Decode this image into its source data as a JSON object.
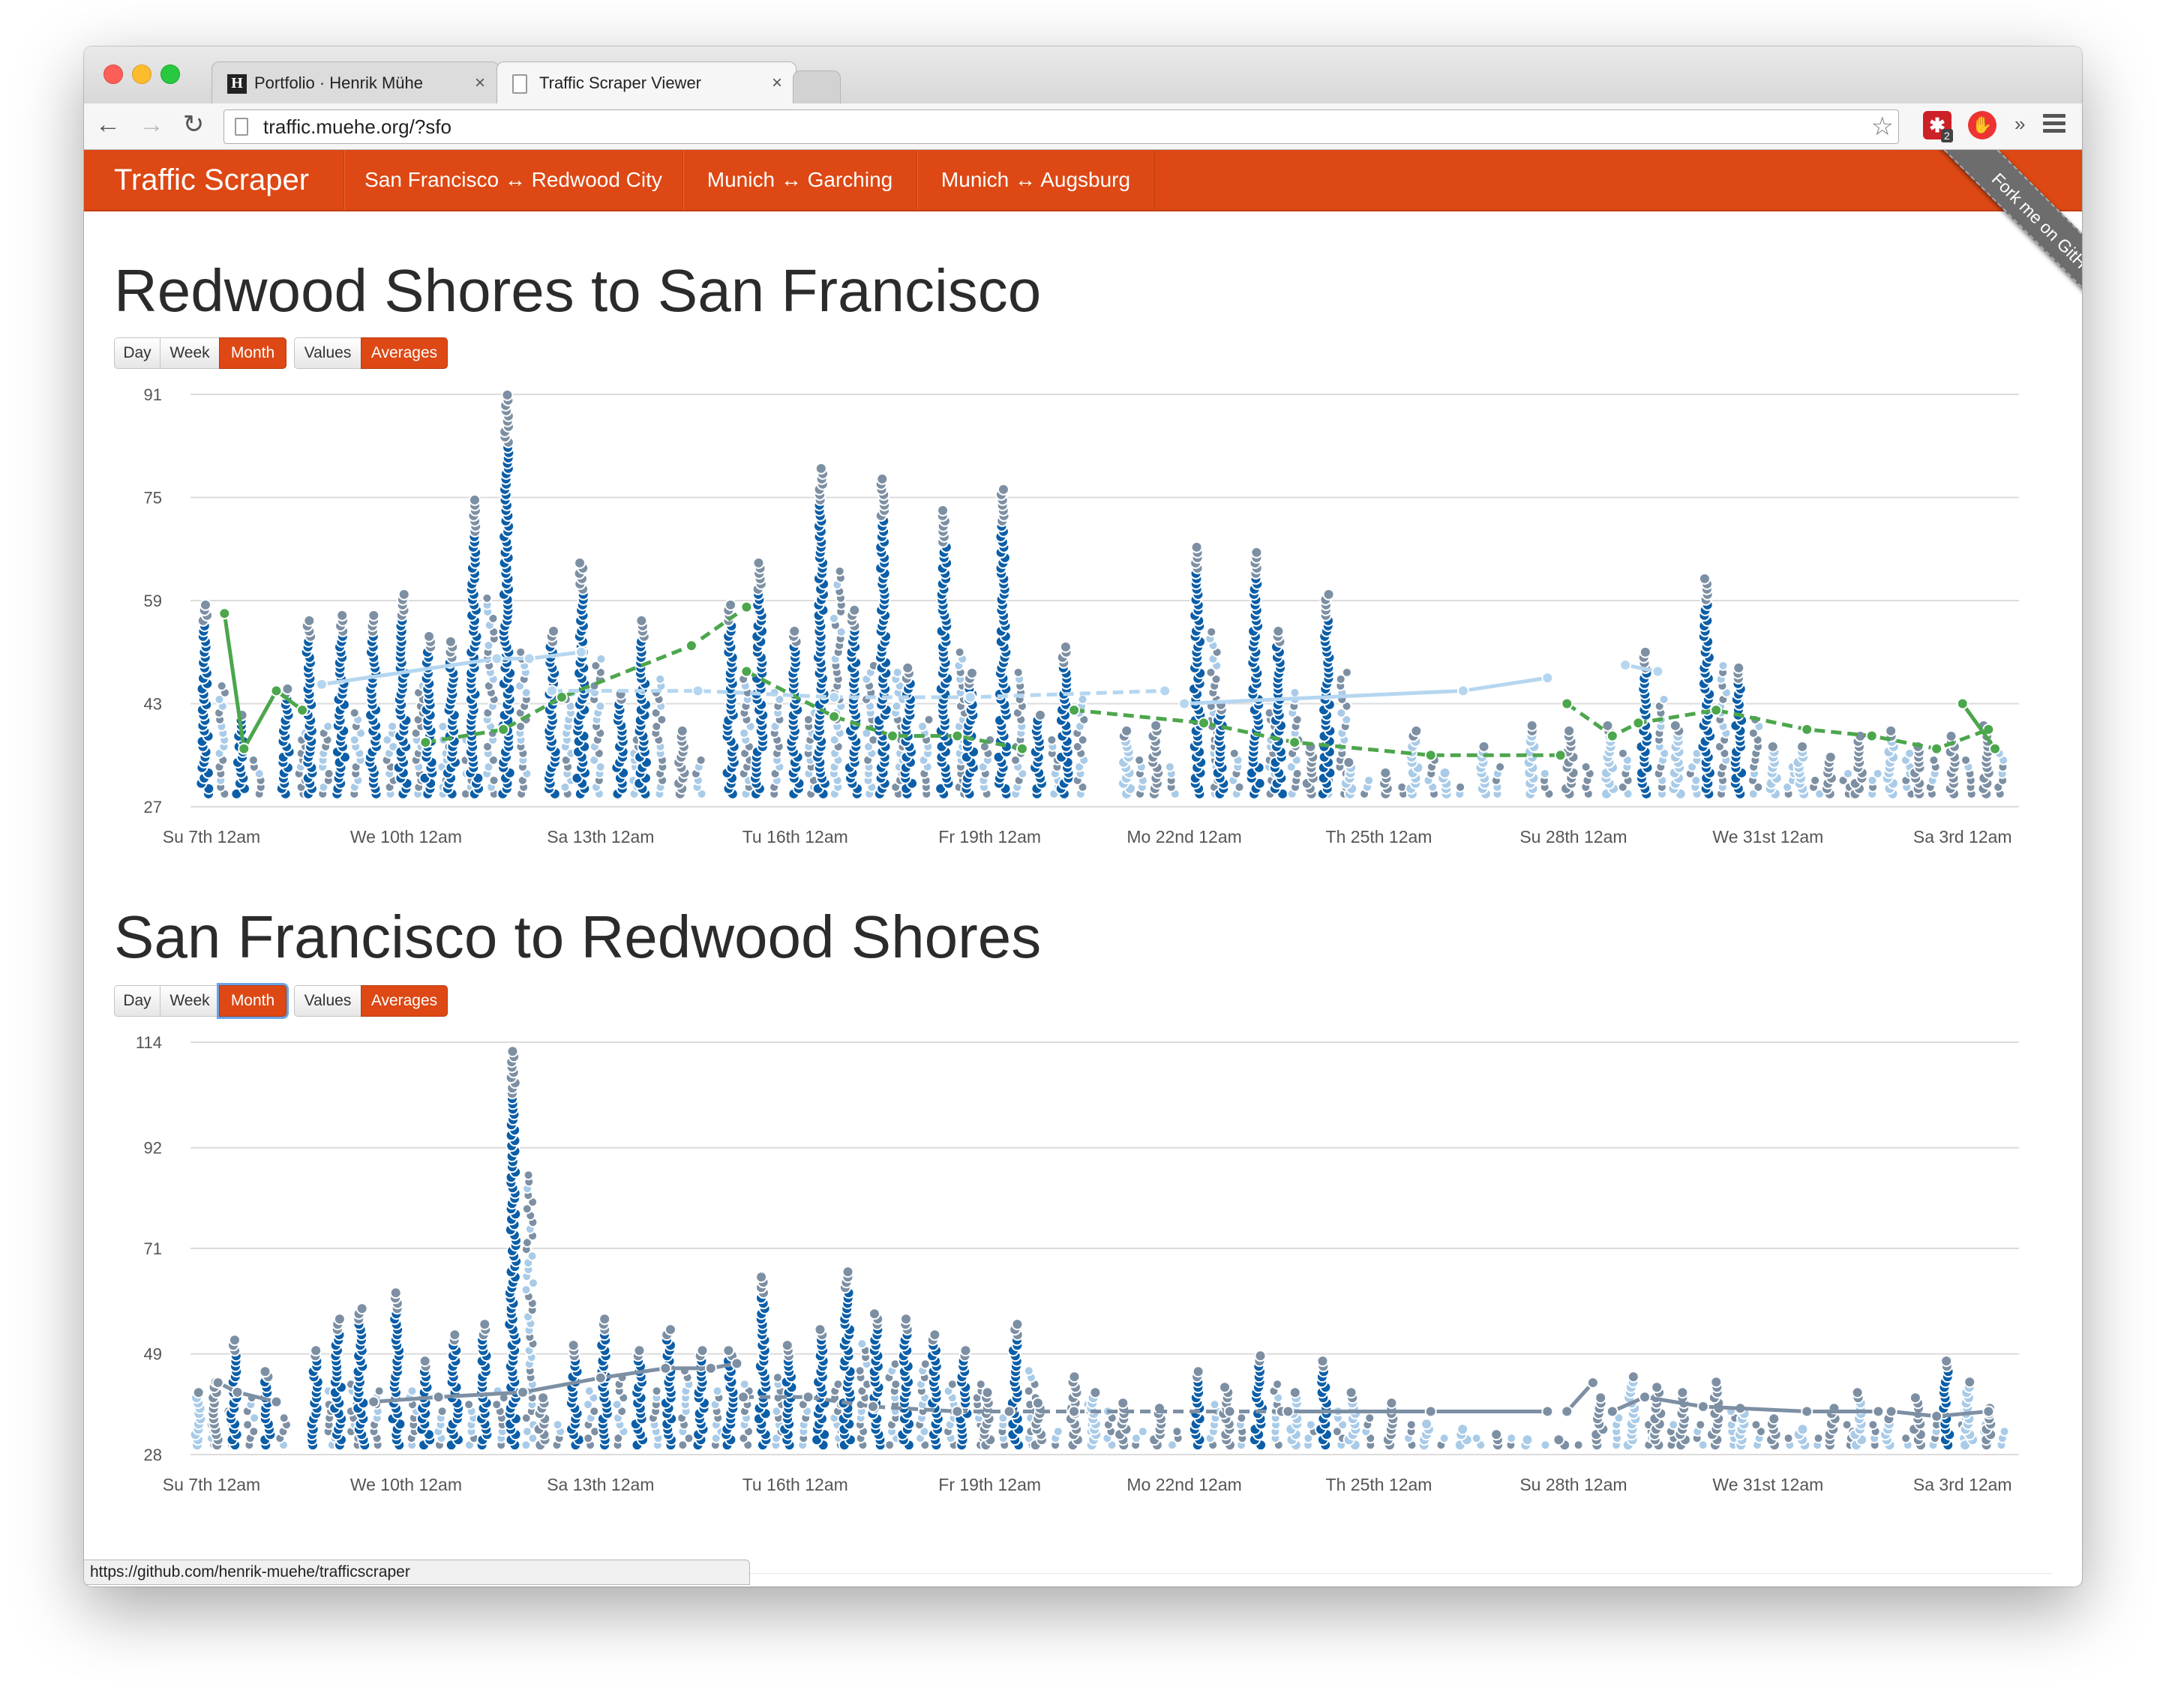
{
  "browser": {
    "tabs": [
      {
        "title": "Portfolio · Henrik Mühe",
        "favicon": "H",
        "close": "×"
      },
      {
        "title": "Traffic Scraper Viewer",
        "close": "×"
      }
    ],
    "url": "traffic.muehe.org/?sfo",
    "extension_badge": "2",
    "overflow": "»",
    "status_url": "https://github.com/henrik-muehe/trafficscraper"
  },
  "navbar": {
    "brand": "Traffic Scraper",
    "links": [
      "San Francisco ↔ Redwood City",
      "Munich ↔ Garching",
      "Munich ↔ Augsburg"
    ],
    "ribbon": "Fork me on GitHub",
    "accent": "#dd4814"
  },
  "controls": {
    "ranges": [
      "Day",
      "Week",
      "Month"
    ],
    "modes": [
      "Values",
      "Averages"
    ],
    "active_range": "Month",
    "active_mode": "Averages"
  },
  "sections": [
    {
      "title": "Redwood Shores to San Francisco"
    },
    {
      "title": "San Francisco to Redwood Shores"
    }
  ],
  "chart_data": [
    {
      "type": "scatter",
      "title": "Redwood Shores to San Francisco",
      "x_ticks": [
        "Su 7th 12am",
        "We 10th 12am",
        "Sa 13th 12am",
        "Tu 16th 12am",
        "Fr 19th 12am",
        "Mo 22nd 12am",
        "Th 25th 12am",
        "Su 28th 12am",
        "We 31st 12am",
        "Sa 3rd 12am"
      ],
      "y_ticks": [
        27,
        43,
        59,
        75,
        91
      ],
      "ylim": [
        27,
        91
      ],
      "x_range_days": [
        0,
        27.5
      ],
      "colors": {
        "primary": "#0b5ea8",
        "secondary": "#7d8fa3",
        "light": "#a9cbe8",
        "trend": "#4ca64c",
        "trend_light": "#b5d6f0"
      },
      "spikes": [
        {
          "day": -0.1,
          "peak": 59
        },
        {
          "day": 0.45,
          "peak": 42
        },
        {
          "day": 1.15,
          "peak": 46
        },
        {
          "day": 1.5,
          "peak": 56
        },
        {
          "day": 2.0,
          "peak": 57
        },
        {
          "day": 2.5,
          "peak": 57
        },
        {
          "day": 2.95,
          "peak": 60
        },
        {
          "day": 3.35,
          "peak": 54
        },
        {
          "day": 3.7,
          "peak": 53
        },
        {
          "day": 4.05,
          "peak": 75
        },
        {
          "day": 4.55,
          "peak": 91
        },
        {
          "day": 5.25,
          "peak": 55
        },
        {
          "day": 5.7,
          "peak": 65
        },
        {
          "day": 6.3,
          "peak": 45
        },
        {
          "day": 6.65,
          "peak": 56
        },
        {
          "day": 7.25,
          "peak": 39
        },
        {
          "day": 8.0,
          "peak": 59
        },
        {
          "day": 8.45,
          "peak": 65
        },
        {
          "day": 9.0,
          "peak": 55
        },
        {
          "day": 9.4,
          "peak": 80
        },
        {
          "day": 9.9,
          "peak": 58
        },
        {
          "day": 10.35,
          "peak": 78
        },
        {
          "day": 10.75,
          "peak": 49
        },
        {
          "day": 11.3,
          "peak": 73
        },
        {
          "day": 11.7,
          "peak": 48
        },
        {
          "day": 12.2,
          "peak": 77
        },
        {
          "day": 12.75,
          "peak": 42
        },
        {
          "day": 13.15,
          "peak": 52
        },
        {
          "day": 14.1,
          "peak": 39
        },
        {
          "day": 14.55,
          "peak": 40
        },
        {
          "day": 15.2,
          "peak": 68
        },
        {
          "day": 15.55,
          "peak": 43
        },
        {
          "day": 16.1,
          "peak": 67
        },
        {
          "day": 16.45,
          "peak": 55
        },
        {
          "day": 16.95,
          "peak": 37
        },
        {
          "day": 17.2,
          "peak": 60
        },
        {
          "day": 17.55,
          "peak": 34
        },
        {
          "day": 18.1,
          "peak": 33
        },
        {
          "day": 18.55,
          "peak": 39
        },
        {
          "day": 19.0,
          "peak": 33
        },
        {
          "day": 19.6,
          "peak": 37
        },
        {
          "day": 20.35,
          "peak": 40
        },
        {
          "day": 20.95,
          "peak": 39
        },
        {
          "day": 21.55,
          "peak": 40
        },
        {
          "day": 22.1,
          "peak": 51
        },
        {
          "day": 22.6,
          "peak": 40
        },
        {
          "day": 23.05,
          "peak": 63
        },
        {
          "day": 23.55,
          "peak": 49
        },
        {
          "day": 24.1,
          "peak": 37
        },
        {
          "day": 24.5,
          "peak": 37
        },
        {
          "day": 24.95,
          "peak": 35
        },
        {
          "day": 25.4,
          "peak": 38
        },
        {
          "day": 25.9,
          "peak": 39
        },
        {
          "day": 26.3,
          "peak": 37
        },
        {
          "day": 26.85,
          "peak": 38
        },
        {
          "day": 27.35,
          "peak": 40
        }
      ],
      "averages": [
        {
          "color": "#4ca64c",
          "dash": false,
          "points": [
            [
              0.2,
              57
            ],
            [
              0.5,
              36
            ],
            [
              1.0,
              45
            ],
            [
              1.4,
              42
            ]
          ]
        },
        {
          "color": "#4ca64c",
          "dash": true,
          "points": [
            [
              3.3,
              37
            ],
            [
              4.5,
              39
            ],
            [
              5.4,
              44
            ],
            [
              7.4,
              52
            ],
            [
              8.25,
              58
            ]
          ]
        },
        {
          "color": "#4ca64c",
          "dash": true,
          "points": [
            [
              8.25,
              48
            ],
            [
              9.6,
              41
            ],
            [
              10.5,
              38
            ],
            [
              11.5,
              38
            ],
            [
              12.5,
              36
            ]
          ]
        },
        {
          "color": "#4ca64c",
          "dash": true,
          "points": [
            [
              13.3,
              42
            ],
            [
              15.3,
              40
            ],
            [
              16.7,
              37
            ],
            [
              18.8,
              35
            ],
            [
              20.8,
              35
            ]
          ]
        },
        {
          "color": "#4ca64c",
          "dash": true,
          "points": [
            [
              20.9,
              43
            ],
            [
              21.6,
              38
            ],
            [
              22.0,
              40
            ],
            [
              23.2,
              42
            ],
            [
              24.6,
              39
            ],
            [
              25.6,
              38
            ],
            [
              26.6,
              36
            ],
            [
              27.4,
              39
            ]
          ]
        },
        {
          "color": "#4ca64c",
          "dash": false,
          "points": [
            [
              27.0,
              43
            ],
            [
              27.5,
              36
            ]
          ]
        },
        {
          "color": "#b5d6f0",
          "dash": false,
          "points": [
            [
              1.7,
              46
            ],
            [
              4.4,
              50
            ],
            [
              4.9,
              50
            ],
            [
              5.7,
              51
            ]
          ]
        },
        {
          "color": "#b5d6f0",
          "dash": true,
          "points": [
            [
              5.25,
              45
            ],
            [
              7.5,
              45
            ],
            [
              9.6,
              44
            ],
            [
              11.7,
              44
            ],
            [
              14.7,
              45
            ]
          ]
        },
        {
          "color": "#b5d6f0",
          "dash": false,
          "points": [
            [
              15.0,
              43
            ],
            [
              19.3,
              45
            ],
            [
              20.6,
              47
            ]
          ]
        },
        {
          "color": "#b5d6f0",
          "dash": false,
          "points": [
            [
              21.8,
              49
            ],
            [
              22.3,
              48
            ]
          ]
        }
      ]
    },
    {
      "type": "scatter",
      "title": "San Francisco to Redwood Shores",
      "x_ticks": [
        "Su 7th 12am",
        "We 10th 12am",
        "Sa 13th 12am",
        "Tu 16th 12am",
        "Fr 19th 12am",
        "Mo 22nd 12am",
        "Th 25th 12am",
        "Su 28th 12am",
        "We 31st 12am",
        "Sa 3rd 12am"
      ],
      "y_ticks": [
        28,
        49,
        71,
        92,
        114
      ],
      "ylim": [
        28,
        114
      ],
      "x_range_days": [
        0,
        27.5
      ],
      "colors": {
        "primary": "#0b5ea8",
        "secondary": "#7d8fa3",
        "light": "#a9cbe8",
        "trend": "#7d8fa3",
        "trend_light": "#b5d6f0"
      },
      "spikes": [
        {
          "day": -0.2,
          "peak": 42
        },
        {
          "day": 0.05,
          "peak": 44
        },
        {
          "day": 0.35,
          "peak": 52
        },
        {
          "day": 0.85,
          "peak": 46
        },
        {
          "day": 1.6,
          "peak": 50
        },
        {
          "day": 1.95,
          "peak": 57
        },
        {
          "day": 2.3,
          "peak": 59
        },
        {
          "day": 2.85,
          "peak": 62
        },
        {
          "day": 3.3,
          "peak": 48
        },
        {
          "day": 3.75,
          "peak": 54
        },
        {
          "day": 4.2,
          "peak": 56
        },
        {
          "day": 4.65,
          "peak": 113
        },
        {
          "day": 5.1,
          "peak": 40
        },
        {
          "day": 5.6,
          "peak": 51
        },
        {
          "day": 6.05,
          "peak": 57
        },
        {
          "day": 6.6,
          "peak": 50
        },
        {
          "day": 7.05,
          "peak": 55
        },
        {
          "day": 7.55,
          "peak": 50
        },
        {
          "day": 8.0,
          "peak": 50
        },
        {
          "day": 8.5,
          "peak": 66
        },
        {
          "day": 8.9,
          "peak": 51
        },
        {
          "day": 9.4,
          "peak": 55
        },
        {
          "day": 9.8,
          "peak": 67
        },
        {
          "day": 10.25,
          "peak": 58
        },
        {
          "day": 10.7,
          "peak": 57
        },
        {
          "day": 11.15,
          "peak": 54
        },
        {
          "day": 11.6,
          "peak": 50
        },
        {
          "day": 11.95,
          "peak": 41
        },
        {
          "day": 12.4,
          "peak": 56
        },
        {
          "day": 12.75,
          "peak": 39
        },
        {
          "day": 13.3,
          "peak": 45
        },
        {
          "day": 13.6,
          "peak": 42
        },
        {
          "day": 14.05,
          "peak": 39
        },
        {
          "day": 14.6,
          "peak": 38
        },
        {
          "day": 15.2,
          "peak": 46
        },
        {
          "day": 15.65,
          "peak": 43
        },
        {
          "day": 16.15,
          "peak": 49
        },
        {
          "day": 16.7,
          "peak": 42
        },
        {
          "day": 17.15,
          "peak": 48
        },
        {
          "day": 17.6,
          "peak": 41
        },
        {
          "day": 18.2,
          "peak": 39
        },
        {
          "day": 18.75,
          "peak": 35
        },
        {
          "day": 19.3,
          "peak": 34
        },
        {
          "day": 19.8,
          "peak": 33
        },
        {
          "day": 20.3,
          "peak": 32
        },
        {
          "day": 20.8,
          "peak": 32
        },
        {
          "day": 21.4,
          "peak": 40
        },
        {
          "day": 21.9,
          "peak": 45
        },
        {
          "day": 22.3,
          "peak": 43
        },
        {
          "day": 22.7,
          "peak": 42
        },
        {
          "day": 23.2,
          "peak": 44
        },
        {
          "day": 23.6,
          "peak": 38
        },
        {
          "day": 24.1,
          "peak": 36
        },
        {
          "day": 24.5,
          "peak": 34
        },
        {
          "day": 25.0,
          "peak": 38
        },
        {
          "day": 25.4,
          "peak": 41
        },
        {
          "day": 25.85,
          "peak": 36
        },
        {
          "day": 26.3,
          "peak": 40
        },
        {
          "day": 26.75,
          "peak": 48
        },
        {
          "day": 27.1,
          "peak": 44
        },
        {
          "day": 27.4,
          "peak": 38
        }
      ],
      "averages": [
        {
          "color": "#7d8fa3",
          "dash": false,
          "points": [
            [
              0.1,
              43
            ],
            [
              0.4,
              41
            ],
            [
              1.0,
              39
            ]
          ]
        },
        {
          "color": "#7d8fa3",
          "dash": false,
          "points": [
            [
              2.5,
              39
            ],
            [
              3.5,
              40
            ],
            [
              4.8,
              41
            ],
            [
              6.0,
              44
            ],
            [
              7.0,
              46
            ],
            [
              7.7,
              46
            ],
            [
              8.1,
              47
            ]
          ]
        },
        {
          "color": "#7d8fa3",
          "dash": true,
          "points": [
            [
              8.2,
              40
            ],
            [
              9.2,
              40
            ],
            [
              10.2,
              38
            ],
            [
              11.5,
              37
            ],
            [
              12.3,
              37
            ],
            [
              13.3,
              37
            ]
          ]
        },
        {
          "color": "#7d8fa3",
          "dash": true,
          "points": [
            [
              13.3,
              37
            ],
            [
              15.7,
              37
            ],
            [
              16.5,
              37
            ]
          ]
        },
        {
          "color": "#7d8fa3",
          "dash": false,
          "points": [
            [
              16.6,
              37
            ],
            [
              18.8,
              37
            ],
            [
              20.6,
              37
            ]
          ]
        },
        {
          "color": "#7d8fa3",
          "dash": false,
          "points": [
            [
              20.9,
              37
            ],
            [
              21.3,
              43
            ]
          ]
        },
        {
          "color": "#7d8fa3",
          "dash": false,
          "points": [
            [
              21.6,
              37
            ],
            [
              22.1,
              40
            ],
            [
              23.0,
              38
            ],
            [
              24.6,
              37
            ],
            [
              25.7,
              37
            ]
          ]
        },
        {
          "color": "#7d8fa3",
          "dash": false,
          "points": [
            [
              25.9,
              37
            ],
            [
              26.6,
              36
            ],
            [
              27.4,
              37
            ]
          ]
        }
      ]
    }
  ]
}
